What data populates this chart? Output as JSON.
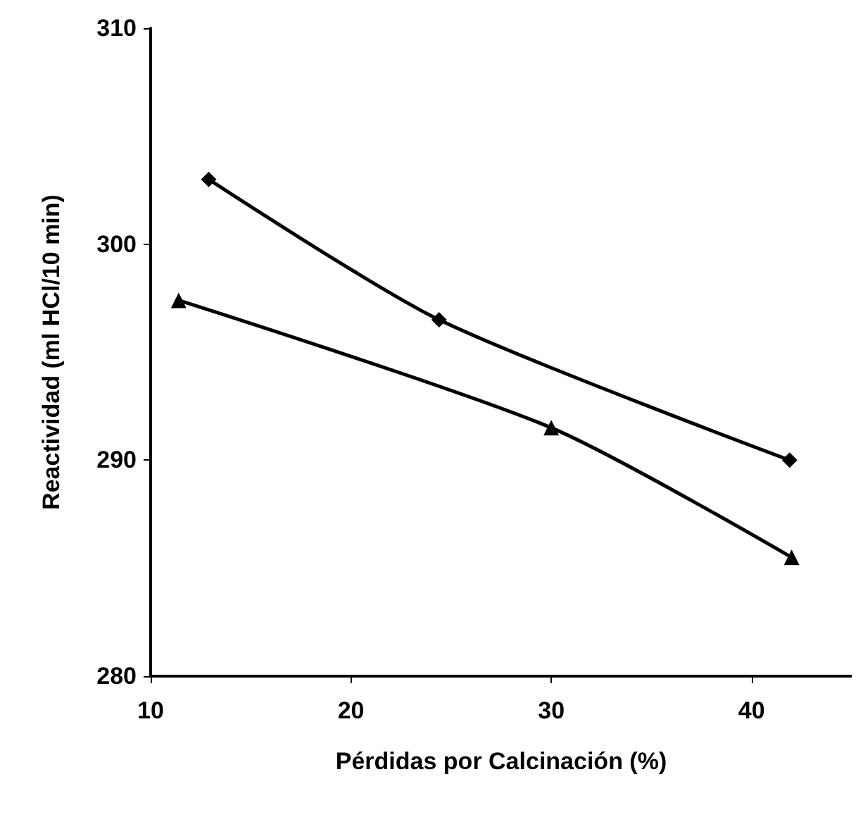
{
  "chart_data": {
    "type": "line",
    "xlabel": "Pérdidas por Calcinación (%)",
    "ylabel": "Reactividad (ml HCl/10 min)",
    "xlim": [
      10,
      45
    ],
    "xticks": [
      10,
      20,
      30,
      40
    ],
    "ylim": [
      280,
      310
    ],
    "yticks": [
      280,
      290,
      300,
      310
    ],
    "line_style": "solid",
    "series": [
      {
        "color": "#000000",
        "marker": "diamond",
        "x": [
          12.9,
          24.4,
          41.9
        ],
        "values": [
          303,
          296.5,
          290
        ]
      },
      {
        "color": "#000000",
        "marker": "triangle",
        "x": [
          11.4,
          30,
          42
        ],
        "values": [
          297.4,
          291.5,
          285.5
        ]
      }
    ]
  }
}
